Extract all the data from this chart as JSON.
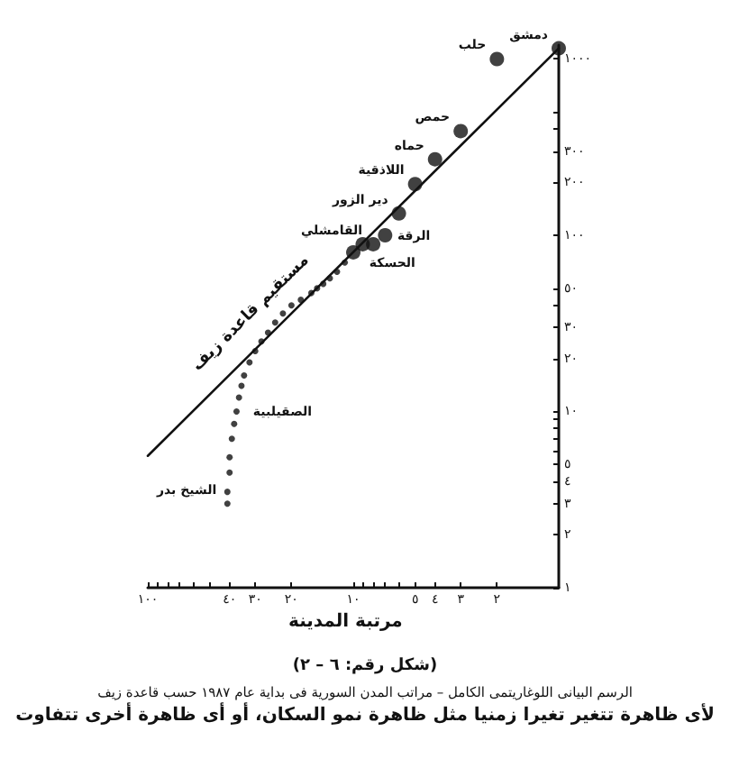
{
  "chart_data": {
    "type": "scatter",
    "title": "(شكل رقم: ٦ – ٢)",
    "subtitle": "الرسم البيانى اللوغاريتمى الكامل – مراتب المدن السورية فى بداية عام ١٩٨٧ حسب قاعدة زيف",
    "xlabel": "مرتبة المدينة",
    "log": "xy",
    "xlim": [
      100,
      1
    ],
    "ylim": [
      1,
      1200
    ],
    "xticks": [
      {
        "value": 2,
        "label": "٢"
      },
      {
        "value": 3,
        "label": "٣"
      },
      {
        "value": 4,
        "label": "٤"
      },
      {
        "value": 5,
        "label": "٥"
      },
      {
        "value": 6,
        "label": null
      },
      {
        "value": 7,
        "label": null
      },
      {
        "value": 8,
        "label": null
      },
      {
        "value": 9,
        "label": null
      },
      {
        "value": 10,
        "label": "١٠"
      },
      {
        "value": 20,
        "label": "٢٠"
      },
      {
        "value": 30,
        "label": "٣٠"
      },
      {
        "value": 40,
        "label": "٤٠"
      },
      {
        "value": 50,
        "label": null
      },
      {
        "value": 60,
        "label": null
      },
      {
        "value": 70,
        "label": null
      },
      {
        "value": 80,
        "label": null
      },
      {
        "value": 90,
        "label": null
      },
      {
        "value": 100,
        "label": "١٠٠"
      }
    ],
    "yticks": [
      {
        "value": 1,
        "label": "١"
      },
      {
        "value": 2,
        "label": "٢"
      },
      {
        "value": 3,
        "label": "٣"
      },
      {
        "value": 4,
        "label": "٤"
      },
      {
        "value": 5,
        "label": "٥"
      },
      {
        "value": 6,
        "label": null
      },
      {
        "value": 7,
        "label": null
      },
      {
        "value": 8,
        "label": null
      },
      {
        "value": 9,
        "label": null
      },
      {
        "value": 10,
        "label": "١٠"
      },
      {
        "value": 20,
        "label": "٢٠"
      },
      {
        "value": 30,
        "label": "٣٠"
      },
      {
        "value": 40,
        "label": null
      },
      {
        "value": 50,
        "label": "٥٠"
      },
      {
        "value": 100,
        "label": "١٠٠"
      },
      {
        "value": 200,
        "label": "٢٠٠"
      },
      {
        "value": 300,
        "label": "٣٠٠"
      },
      {
        "value": 400,
        "label": null
      },
      {
        "value": 500,
        "label": null
      },
      {
        "value": 1000,
        "label": "١٠٠٠"
      }
    ],
    "grid": false,
    "legend": false,
    "marker": "circle",
    "series": [
      {
        "color": "#111111",
        "x": [
          1,
          2,
          3,
          4,
          5,
          6,
          7,
          8,
          9,
          10
        ],
        "values": [
          1150,
          1000,
          390,
          270,
          195,
          133,
          100,
          89,
          89,
          80
        ]
      },
      {
        "color": "#111111",
        "x": [
          11,
          12,
          13,
          14,
          15,
          16,
          18,
          20,
          22,
          24,
          26,
          28,
          30,
          32,
          34,
          35,
          36,
          37,
          38,
          39,
          40,
          40,
          41,
          41
        ],
        "values": [
          70,
          62,
          57,
          53,
          50,
          47,
          43,
          40,
          36,
          32,
          28,
          25,
          22,
          19,
          16,
          14,
          12,
          10,
          8.5,
          7,
          5.5,
          4.5,
          3.5,
          3
        ]
      },
      {
        "type": "line",
        "name": "مستقيم قاعدة زيف",
        "color": "#111111",
        "line_style": "solid",
        "marker": "none",
        "x": [
          1,
          100
        ],
        "values": [
          1150,
          5.6
        ]
      }
    ],
    "annotations": [
      {
        "text": "دمشق",
        "x": 1,
        "y": 1150
      },
      {
        "text": "حلب",
        "x": 2,
        "y": 1000
      },
      {
        "text": "حمص",
        "x": 3,
        "y": 390
      },
      {
        "text": "حماه",
        "x": 4,
        "y": 270
      },
      {
        "text": "اللاذقية",
        "x": 5,
        "y": 195
      },
      {
        "text": "دير الزور",
        "x": 6,
        "y": 133
      },
      {
        "text": "الرقة",
        "x": 7,
        "y": 100
      },
      {
        "text": "القامشلي",
        "x": 8,
        "y": 89
      },
      {
        "text": "الحسكة",
        "x": 9,
        "y": 89
      },
      {
        "text": "الصقيلبية",
        "x": 37,
        "y": 10
      },
      {
        "text": "الشيخ بدر",
        "x": 41,
        "y": 3
      },
      "لأى ظاهرة تتغير تغيرا زمنيا مثل ظاهرة نمو السكان، أو أى ظاهرة أخرى تتفاوت"
    ]
  }
}
